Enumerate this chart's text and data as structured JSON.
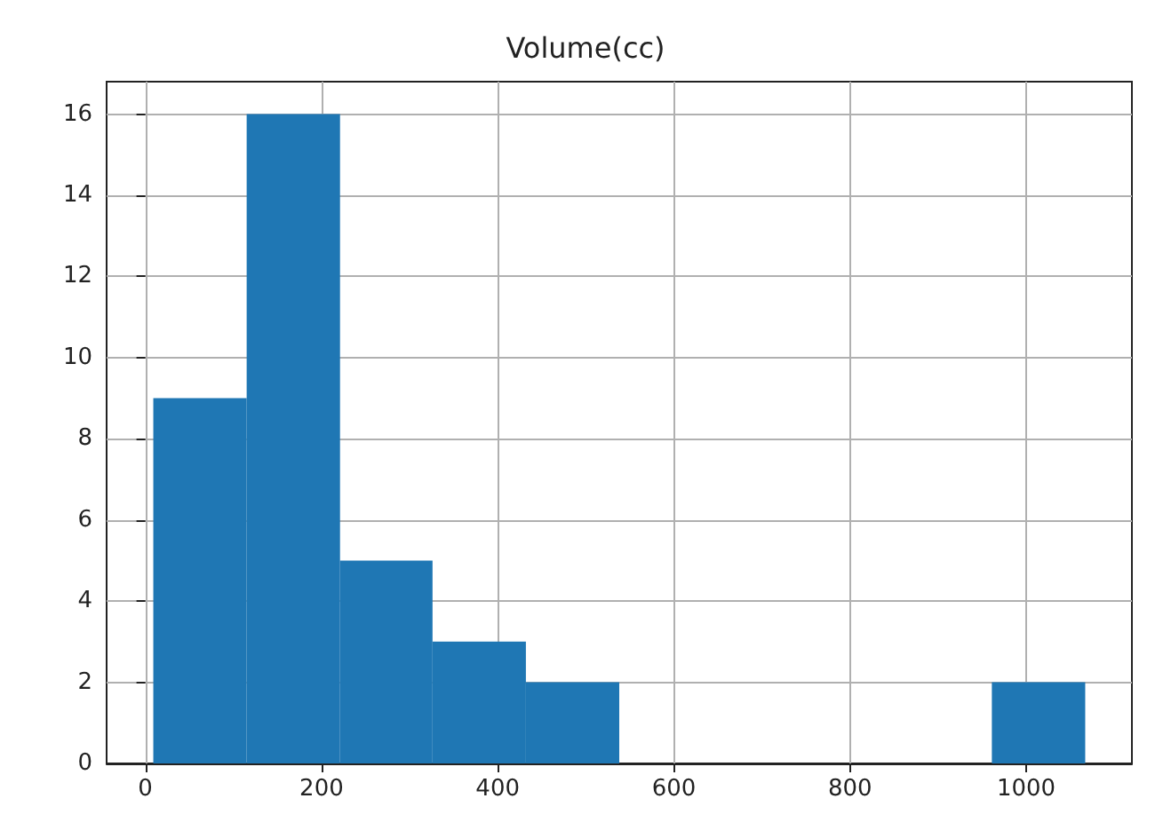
{
  "chart_data": {
    "type": "histogram",
    "title": "Volume(cc)",
    "bins": [
      9,
      115,
      221,
      326,
      432,
      538,
      961,
      1067
    ],
    "values": [
      9,
      16,
      5,
      3,
      2,
      0,
      2
    ],
    "color": "#1f77b4",
    "xlim": [
      -44,
      1120
    ],
    "xticks": [
      0,
      200,
      400,
      600,
      800,
      1000
    ],
    "ylim": [
      0,
      16.8
    ],
    "yticks": [
      0,
      2,
      4,
      6,
      8,
      10,
      12,
      14,
      16
    ],
    "grid": true
  }
}
